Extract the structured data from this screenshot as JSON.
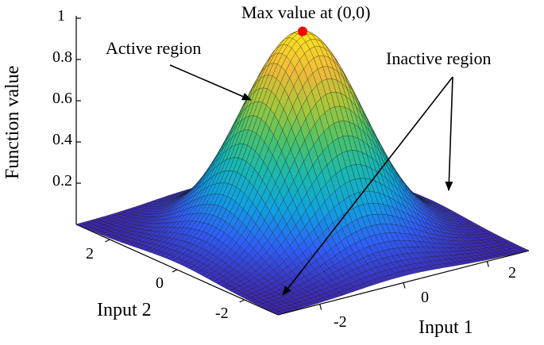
{
  "chart_data": {
    "type": "surface",
    "function": "exp(-k(x^2+y^2))",
    "peak": {
      "x": 0,
      "y": 0,
      "z": 1
    },
    "x_range": [
      -3,
      3
    ],
    "y_range": [
      -3,
      3
    ],
    "zlim": [
      0,
      1
    ],
    "zticks": [
      "0.2",
      "0.4",
      "0.6",
      "0.8",
      "1"
    ],
    "xticks": [
      "-2",
      "0",
      "2"
    ],
    "yticks": [
      "-2",
      "0",
      "2"
    ],
    "xlabel": "Input 1",
    "ylabel": "Input 2",
    "zlabel": "Function value",
    "colormap": [
      "#3e26a8",
      "#2f5df6",
      "#10a0e0",
      "#1ab8b0",
      "#4cc26a",
      "#a9c63a",
      "#f0b93a",
      "#f9e51f"
    ],
    "marker_color": "#ff0000",
    "grid": false
  },
  "annotations": {
    "max": "Max value at (0,0)",
    "active": "Active region",
    "inactive": "Inactive region"
  }
}
